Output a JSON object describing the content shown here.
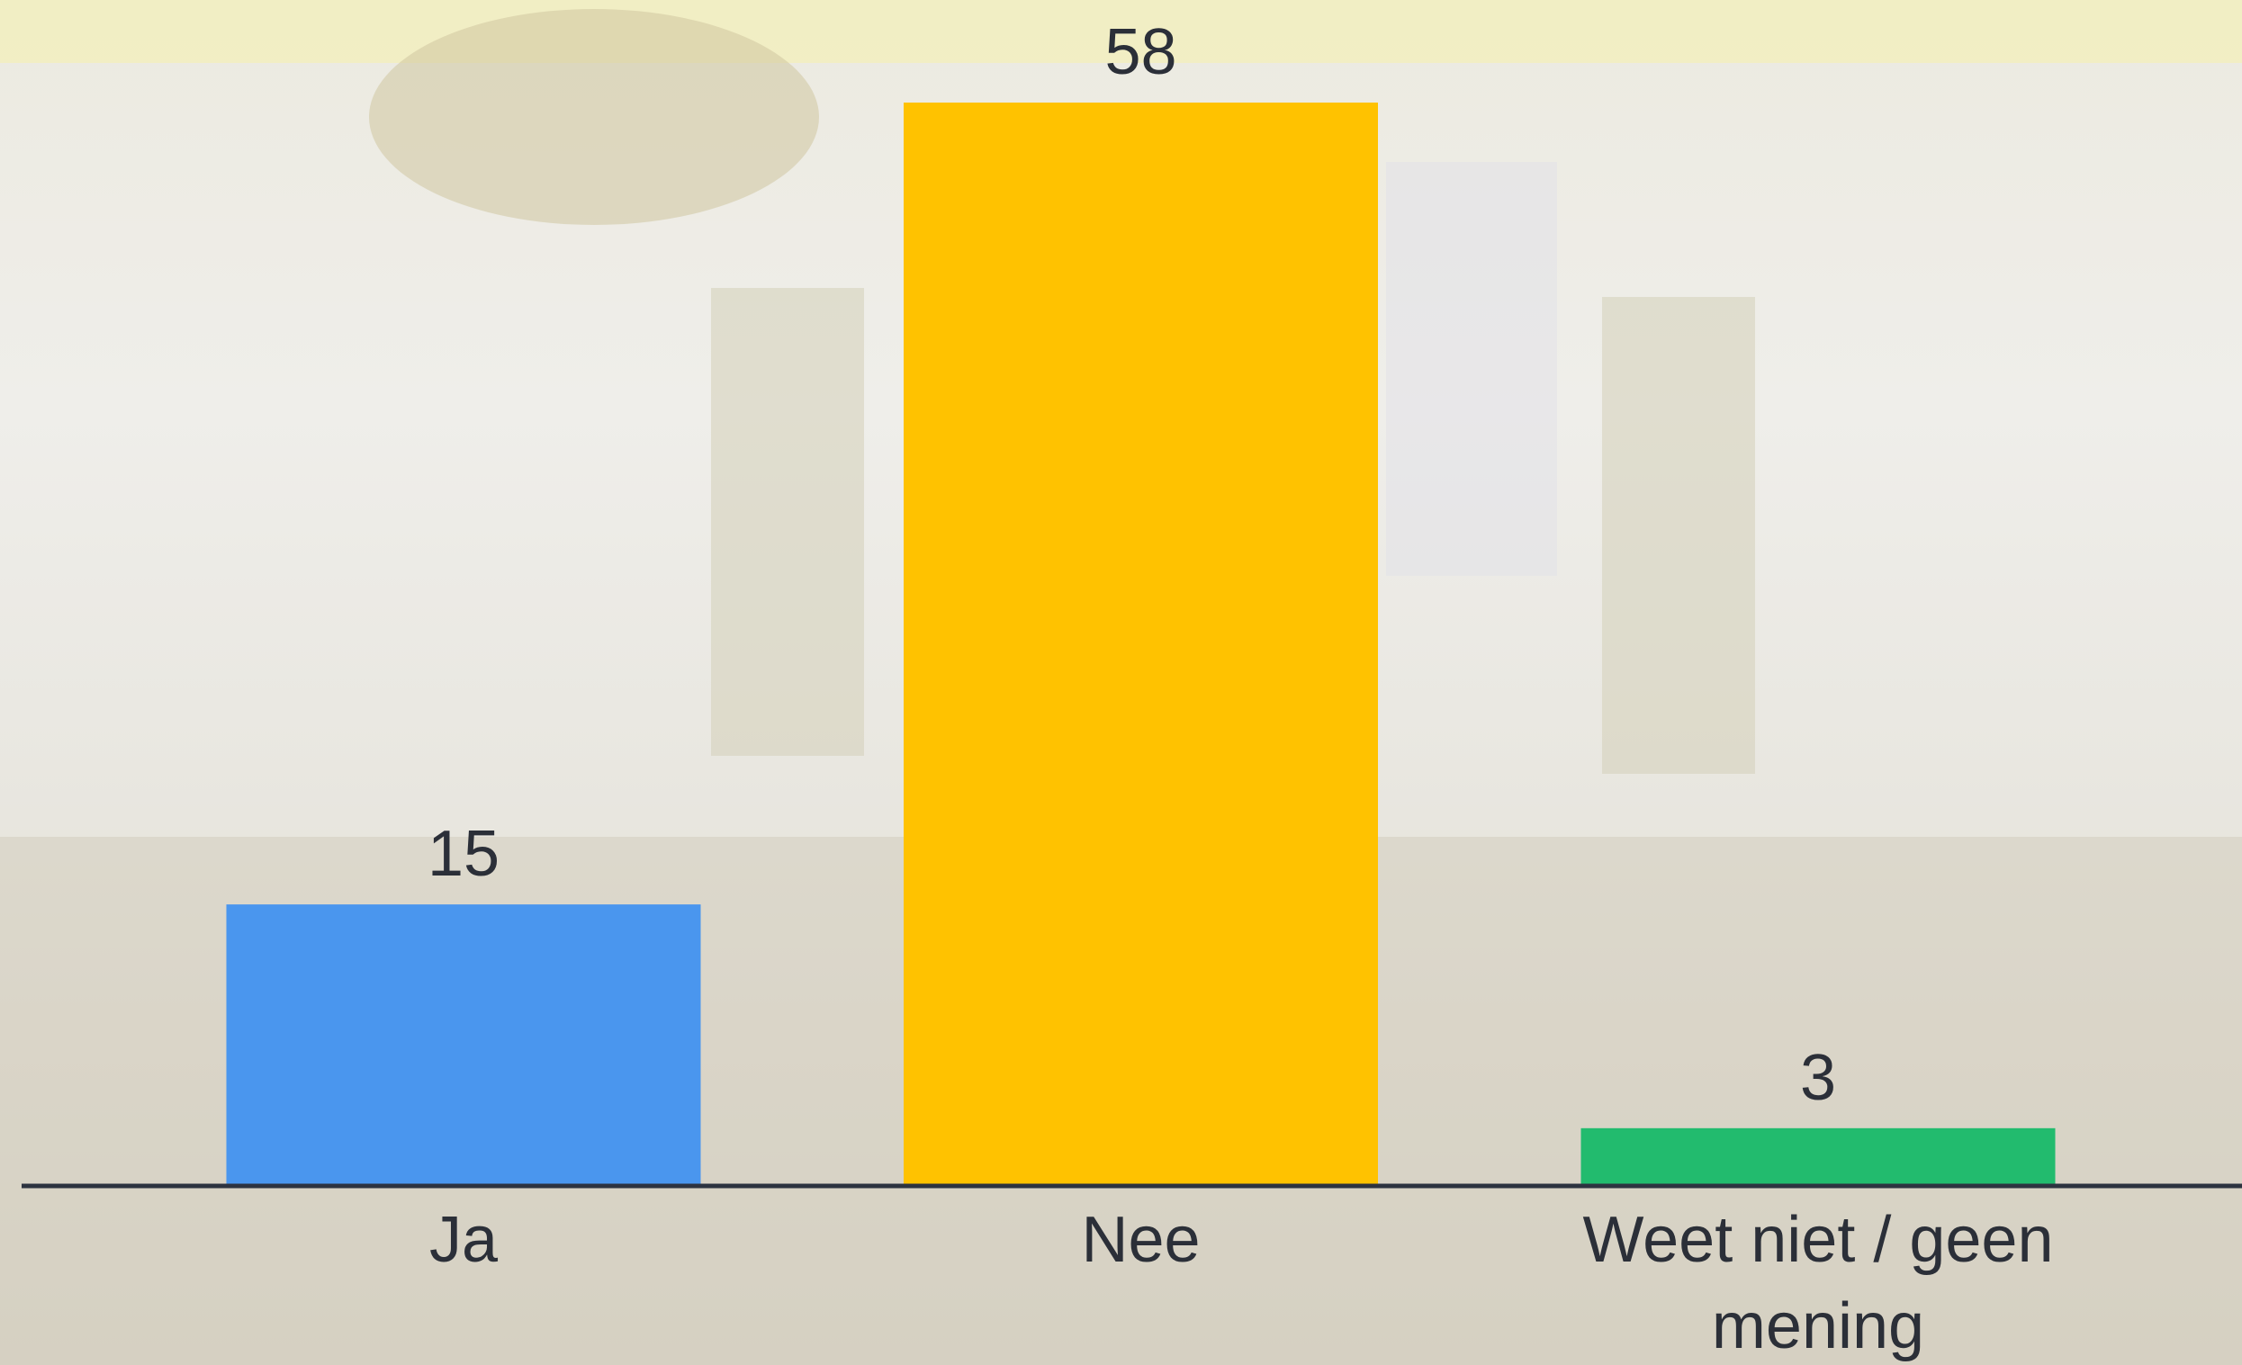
{
  "chart_data": {
    "type": "bar",
    "categories": [
      "Ja",
      "Nee",
      "Weet niet / geen mening"
    ],
    "values": [
      15,
      58,
      3
    ],
    "colors": [
      "#4a96ee",
      "#ffc200",
      "#22bb6e"
    ]
  }
}
